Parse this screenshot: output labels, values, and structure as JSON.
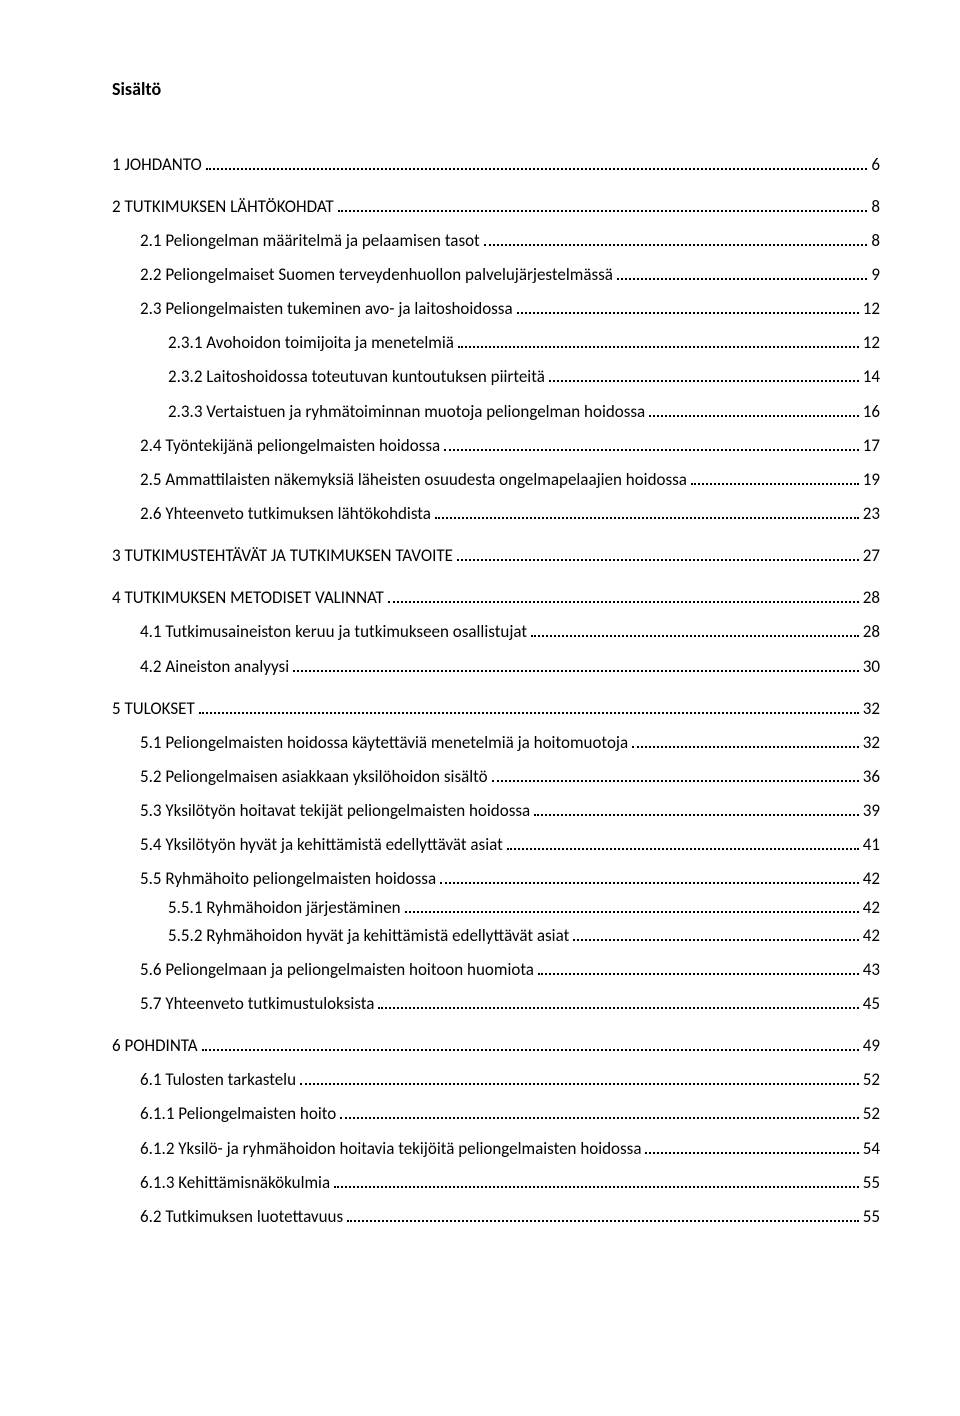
{
  "heading": "Sisältö",
  "entries": [
    {
      "text": "1 JOHDANTO",
      "page": "6",
      "indent": 0,
      "gap": 14
    },
    {
      "text": "2 TUTKIMUKSEN LÄHTÖKOHDAT",
      "page": "8",
      "indent": 0,
      "gap": 6
    },
    {
      "text": "2.1 Peliongelman määritelmä ja pelaamisen tasot",
      "page": "8",
      "indent": 1,
      "gap": 6
    },
    {
      "text": "2.2 Peliongelmaiset Suomen terveydenhuollon palvelujärjestelmässä",
      "page": "9",
      "indent": 1,
      "gap": 6
    },
    {
      "text": "2.3 Peliongelmaisten tukeminen avo- ja laitoshoidossa",
      "page": "12",
      "indent": 1,
      "gap": 6
    },
    {
      "text": "2.3.1 Avohoidon toimijoita ja menetelmiä",
      "page": "12",
      "indent": 2,
      "gap": 6
    },
    {
      "text": "2.3.2 Laitoshoidossa toteutuvan kuntoutuksen piirteitä",
      "page": "14",
      "indent": 2,
      "gap": 6
    },
    {
      "text": "2.3.3 Vertaistuen ja ryhmätoiminnan muotoja peliongelman hoidossa",
      "page": "16",
      "indent": 2,
      "gap": 6
    },
    {
      "text": "2.4 Työntekijänä peliongelmaisten hoidossa",
      "page": "17",
      "indent": 1,
      "gap": 6
    },
    {
      "text": "2.5 Ammattilaisten näkemyksiä läheisten osuudesta ongelmapelaajien hoidossa",
      "page": "19",
      "indent": 1,
      "gap": 6
    },
    {
      "text": "2.6 Yhteenveto tutkimuksen lähtökohdista",
      "page": "23",
      "indent": 1,
      "gap": 14
    },
    {
      "text": "3 TUTKIMUSTEHTÄVÄT JA TUTKIMUKSEN TAVOITE",
      "page": "27",
      "indent": 0,
      "gap": 14
    },
    {
      "text": "4 TUTKIMUKSEN METODISET VALINNAT",
      "page": "28",
      "indent": 0,
      "gap": 6
    },
    {
      "text": "4.1 Tutkimusaineiston keruu ja tutkimukseen osallistujat",
      "page": "28",
      "indent": 1,
      "gap": 6
    },
    {
      "text": "4.2 Aineiston analyysi",
      "page": "30",
      "indent": 1,
      "gap": 14
    },
    {
      "text": "5 TULOKSET",
      "page": "32",
      "indent": 0,
      "gap": 6
    },
    {
      "text": "5.1 Peliongelmaisten hoidossa käytettäviä menetelmiä ja hoitomuotoja",
      "page": "32",
      "indent": 1,
      "gap": 6
    },
    {
      "text": "5.2 Peliongelmaisen asiakkaan yksilöhoidon sisältö",
      "page": "36",
      "indent": 1,
      "gap": 6
    },
    {
      "text": "5.3 Yksilötyön hoitavat tekijät peliongelmaisten hoidossa",
      "page": "39",
      "indent": 1,
      "gap": 6
    },
    {
      "text": "5.4 Yksilötyön hyvät ja kehittämistä edellyttävät asiat",
      "page": "41",
      "indent": 1,
      "gap": 6
    },
    {
      "text": "5.5 Ryhmähoito peliongelmaisten hoidossa",
      "page": "42",
      "indent": 1,
      "gap": 0
    },
    {
      "text": "5.5.1 Ryhmähoidon järjestäminen",
      "page": "42",
      "indent": 2,
      "gap": 0
    },
    {
      "text": "5.5.2 Ryhmähoidon hyvät ja kehittämistä edellyttävät asiat",
      "page": "42",
      "indent": 2,
      "gap": 6
    },
    {
      "text": "5.6 Peliongelmaan ja peliongelmaisten hoitoon huomiota",
      "page": "43",
      "indent": 1,
      "gap": 6
    },
    {
      "text": "5.7 Yhteenveto tutkimustuloksista",
      "page": "45",
      "indent": 1,
      "gap": 14
    },
    {
      "text": "6 POHDINTA",
      "page": "49",
      "indent": 0,
      "gap": 6
    },
    {
      "text": "6.1 Tulosten tarkastelu",
      "page": "52",
      "indent": 1,
      "gap": 6
    },
    {
      "text": "6.1.1 Peliongelmaisten hoito",
      "page": "52",
      "indent": 1,
      "gap": 6
    },
    {
      "text": "6.1.2 Yksilö- ja ryhmähoidon hoitavia tekijöitä peliongelmaisten hoidossa",
      "page": "54",
      "indent": 1,
      "gap": 6
    },
    {
      "text": "6.1.3 Kehittämisnäkökulmia",
      "page": "55",
      "indent": 1,
      "gap": 6
    },
    {
      "text": "6.2 Tutkimuksen luotettavuus",
      "page": "55",
      "indent": 1,
      "gap": 0
    }
  ]
}
